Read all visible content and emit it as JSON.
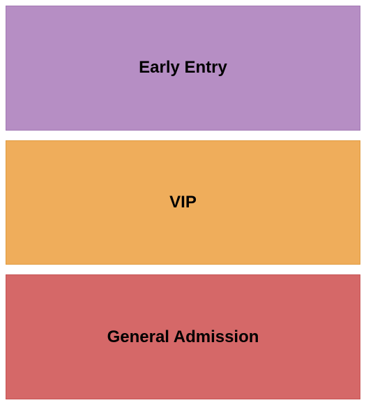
{
  "seating_chart": {
    "type": "infographic",
    "background_color": "#ffffff",
    "gap": 14,
    "padding": 8,
    "label_fontsize": 24,
    "label_fontweight": "bold",
    "label_color": "#000000",
    "sections": [
      {
        "label": "Early Entry",
        "background_color": "#b68ec4",
        "border_color": "#a279b3"
      },
      {
        "label": "VIP",
        "background_color": "#efad5b",
        "border_color": "#e09a3f"
      },
      {
        "label": "General Admission",
        "background_color": "#d56868",
        "border_color": "#c75555"
      }
    ]
  }
}
